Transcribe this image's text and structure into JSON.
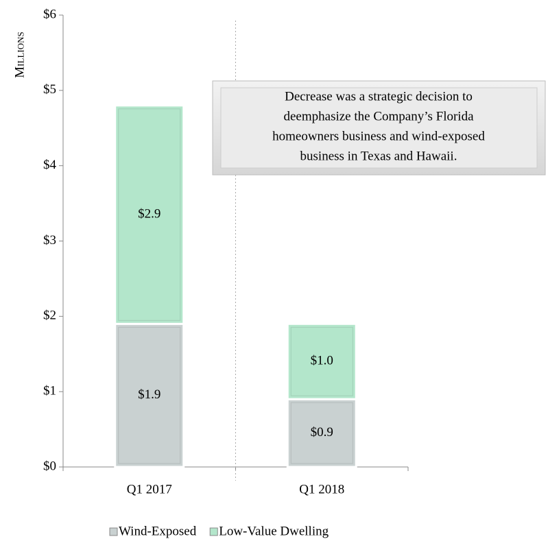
{
  "chart_data": {
    "type": "bar",
    "stacked": true,
    "y_axis_label": "Millions",
    "categories": [
      "Q1 2017",
      "Q1 2018"
    ],
    "series": [
      {
        "name": "Wind-Exposed",
        "color": "#c9d1d1",
        "values": [
          1.9,
          0.9
        ],
        "value_labels": [
          "$1.9",
          "$0.9"
        ]
      },
      {
        "name": "Low-Value Dwelling",
        "color": "#b3e6cb",
        "values": [
          2.9,
          1.0
        ],
        "value_labels": [
          "$2.9",
          "$1.0"
        ]
      }
    ],
    "ylim": [
      0,
      6
    ],
    "yticks": [
      {
        "value": 0,
        "label": "$0"
      },
      {
        "value": 1,
        "label": "$1"
      },
      {
        "value": 2,
        "label": "$2"
      },
      {
        "value": 3,
        "label": "$3"
      },
      {
        "value": 4,
        "label": "$4"
      },
      {
        "value": 5,
        "label": "$5"
      },
      {
        "value": 6,
        "label": "$6"
      }
    ],
    "annotation": [
      "Decrease was a strategic decision to",
      "deemphasize the Company’s Florida",
      "homeowners business and wind-exposed",
      "business in Texas and Hawaii."
    ],
    "legend": "bottom"
  }
}
